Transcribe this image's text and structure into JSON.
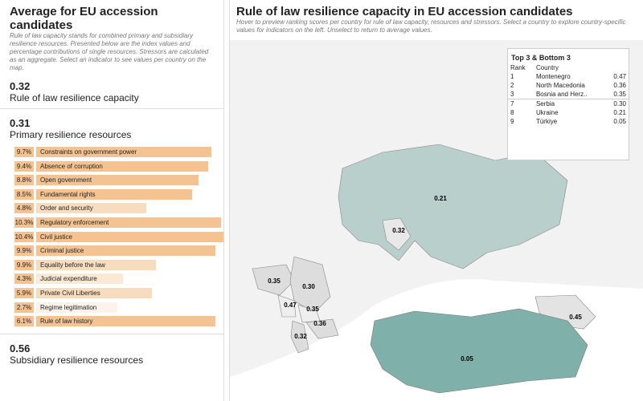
{
  "left": {
    "title": "Average for EU accession candidates",
    "description": "Rule of law capacity stands for combined primary and subsidiary resilience resources. Presented below are the index values and percentage contributions of single resources. Stressors are calculated as an aggregate. Select an indicator to see values per country on the map.",
    "stats": [
      {
        "value": "0.32",
        "label": "Rule of law resilience capacity"
      },
      {
        "value": "0.31",
        "label": "Primary resilience resources"
      },
      {
        "value": "0.56",
        "label": "Subsidiary resilience resources"
      }
    ],
    "indicators": [
      {
        "share": "9.7%",
        "name": "Constraints on government power",
        "score": 0.91,
        "color": "#f5c391"
      },
      {
        "share": "9.4%",
        "name": "Absence of corruption",
        "score": 0.89,
        "color": "#f5c391"
      },
      {
        "share": "8.8%",
        "name": "Open government",
        "score": 0.84,
        "color": "#f5c391"
      },
      {
        "share": "8.5%",
        "name": "Fundamental rights",
        "score": 0.81,
        "color": "#f5c391"
      },
      {
        "share": "4.8%",
        "name": "Order and security",
        "score": 0.57,
        "color": "#f8dcbf"
      },
      {
        "share": "10.3%",
        "name": "Regulatory enforcement",
        "score": 0.96,
        "color": "#f5c391"
      },
      {
        "share": "10.4%",
        "name": "Civil justice",
        "score": 0.97,
        "color": "#f5c391"
      },
      {
        "share": "9.9%",
        "name": "Criminal justice",
        "score": 0.93,
        "color": "#f5c391"
      },
      {
        "share": "9.9%",
        "name": "Equality before the law",
        "score": 0.62,
        "color": "#f8dcbf"
      },
      {
        "share": "4.3%",
        "name": "Judicial expenditure",
        "score": 0.45,
        "color": "#fbe9d6"
      },
      {
        "share": "5.9%",
        "name": "Private Civil Liberties",
        "score": 0.6,
        "color": "#f8dcbf"
      },
      {
        "share": "2.7%",
        "name": "Regime legitimation",
        "score": 0.42,
        "color": "#fdf3ea"
      },
      {
        "share": "6.1%",
        "name": "Rule of law history",
        "score": 0.93,
        "color": "#f5c391"
      }
    ]
  },
  "right": {
    "title": "Rule of law resilience capacity in EU accession candidates",
    "subtitle": "Hover to preview ranking scores per country for rule of law capacity, resources and stressors. Select a country to explore country-specific values for indicators on the left. Unselect to return to average values.",
    "map_labels": [
      "0.21",
      "0.32",
      "0.35",
      "0.30",
      "0.47",
      "0.35",
      "0.36",
      "0.32",
      "0.45",
      "0.05"
    ],
    "table": {
      "title": "Top 3 & Bottom 3",
      "header": [
        "Rank",
        "Country"
      ],
      "top": [
        [
          "1",
          "Montenegro",
          "0.47"
        ],
        [
          "2",
          "North Macedonia",
          "0.36"
        ],
        [
          "3",
          "Bosnia and Herz..",
          "0.35"
        ]
      ],
      "bottom": [
        [
          "7",
          "Serbia",
          "0.30"
        ],
        [
          "8",
          "Ukraine",
          "0.21"
        ],
        [
          "9",
          "Türkiye",
          "0.05"
        ]
      ]
    }
  }
}
